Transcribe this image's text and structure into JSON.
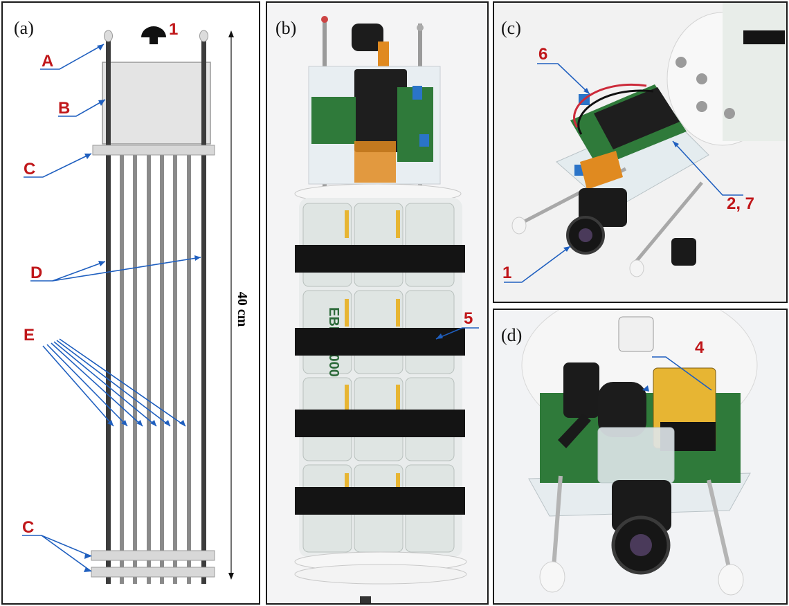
{
  "panels": {
    "a": {
      "letter": "(a)"
    },
    "b": {
      "letter": "(b)"
    },
    "c": {
      "letter": "(c)"
    },
    "d": {
      "letter": "(d)"
    }
  },
  "labels": {
    "A": "A",
    "B": "B",
    "C": "C",
    "D": "D",
    "E": "E",
    "one": "1",
    "two_seven": "2, 7",
    "four": "4",
    "five": "5",
    "six": "6"
  },
  "dimension": "40 cm",
  "battery_text": "EBL 10000",
  "colors": {
    "callout_red": "#c0171a",
    "arrow_blue": "#1f5fbf",
    "rod_dark": "#3c3c3c",
    "rod_gray": "#8a8a8a",
    "pcb_green": "#2f7a3a",
    "battery_yellow": "#e7b533"
  }
}
